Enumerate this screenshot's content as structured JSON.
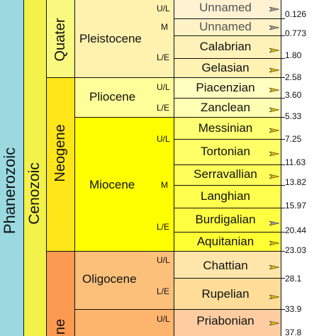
{
  "colors": {
    "phanerozoic": "#9ad9e0",
    "cenozoic": "#f2f24a",
    "quaternary": "#f9f97f",
    "neogene": "#ffe619",
    "paleogene": "#fd9a52",
    "pleistocene": "#fff2ae",
    "pleistocene_stage": "#fff2c7",
    "pleistocene_upper": "#fff2d3",
    "pliocene": "#ffff99",
    "pliocene_stage": "#ffffbf",
    "miocene": "#ffff00",
    "miocene_stage": "#ffff4d",
    "oligocene": "#fdc07a",
    "oligocene_stage": "#fedaa0",
    "eocene": "#fdb46c",
    "eocene_stage": "#fdcda1"
  },
  "eon": "Phanerozoic",
  "era": "Cenozoic",
  "periods": {
    "quaternary": "Quater",
    "neogene": "Neogene",
    "paleogene": "ne"
  },
  "epochs": {
    "pleistocene": "Pleistocene",
    "pliocene": "Pliocene",
    "miocene": "Miocene",
    "oligocene": "Oligocene"
  },
  "subdivisions": {
    "pleistocene_ul": "U/L",
    "pleistocene_m": "M",
    "pleistocene_le": "L/E",
    "pliocene_ul": "U/L",
    "pliocene_le": "L/E",
    "miocene_ul": "U/L",
    "miocene_m": "M",
    "miocene_le": "L/E",
    "oligocene_ul": "U/L",
    "oligocene_le": "L/E",
    "eocene_ul": "U/L"
  },
  "stages": [
    {
      "name": "Unnamed"
    },
    {
      "name": "Unnamed"
    },
    {
      "name": "Calabrian"
    },
    {
      "name": "Gelasian"
    },
    {
      "name": "Piacenzian"
    },
    {
      "name": "Zanclean"
    },
    {
      "name": "Messinian"
    },
    {
      "name": "Tortonian"
    },
    {
      "name": "Serravallian"
    },
    {
      "name": "Langhian"
    },
    {
      "name": "Burdigalian"
    },
    {
      "name": "Aquitanian"
    },
    {
      "name": "Chattian"
    },
    {
      "name": "Rupelian"
    },
    {
      "name": "Priabonian"
    }
  ],
  "ages": [
    "0.126",
    "0.773",
    "1.80",
    "2.58",
    "3.60",
    "5.33",
    "7.25",
    "11.63",
    "13.82",
    "15.97",
    "20.44",
    "23.03",
    "28.1",
    "33.9",
    "37.8"
  ]
}
